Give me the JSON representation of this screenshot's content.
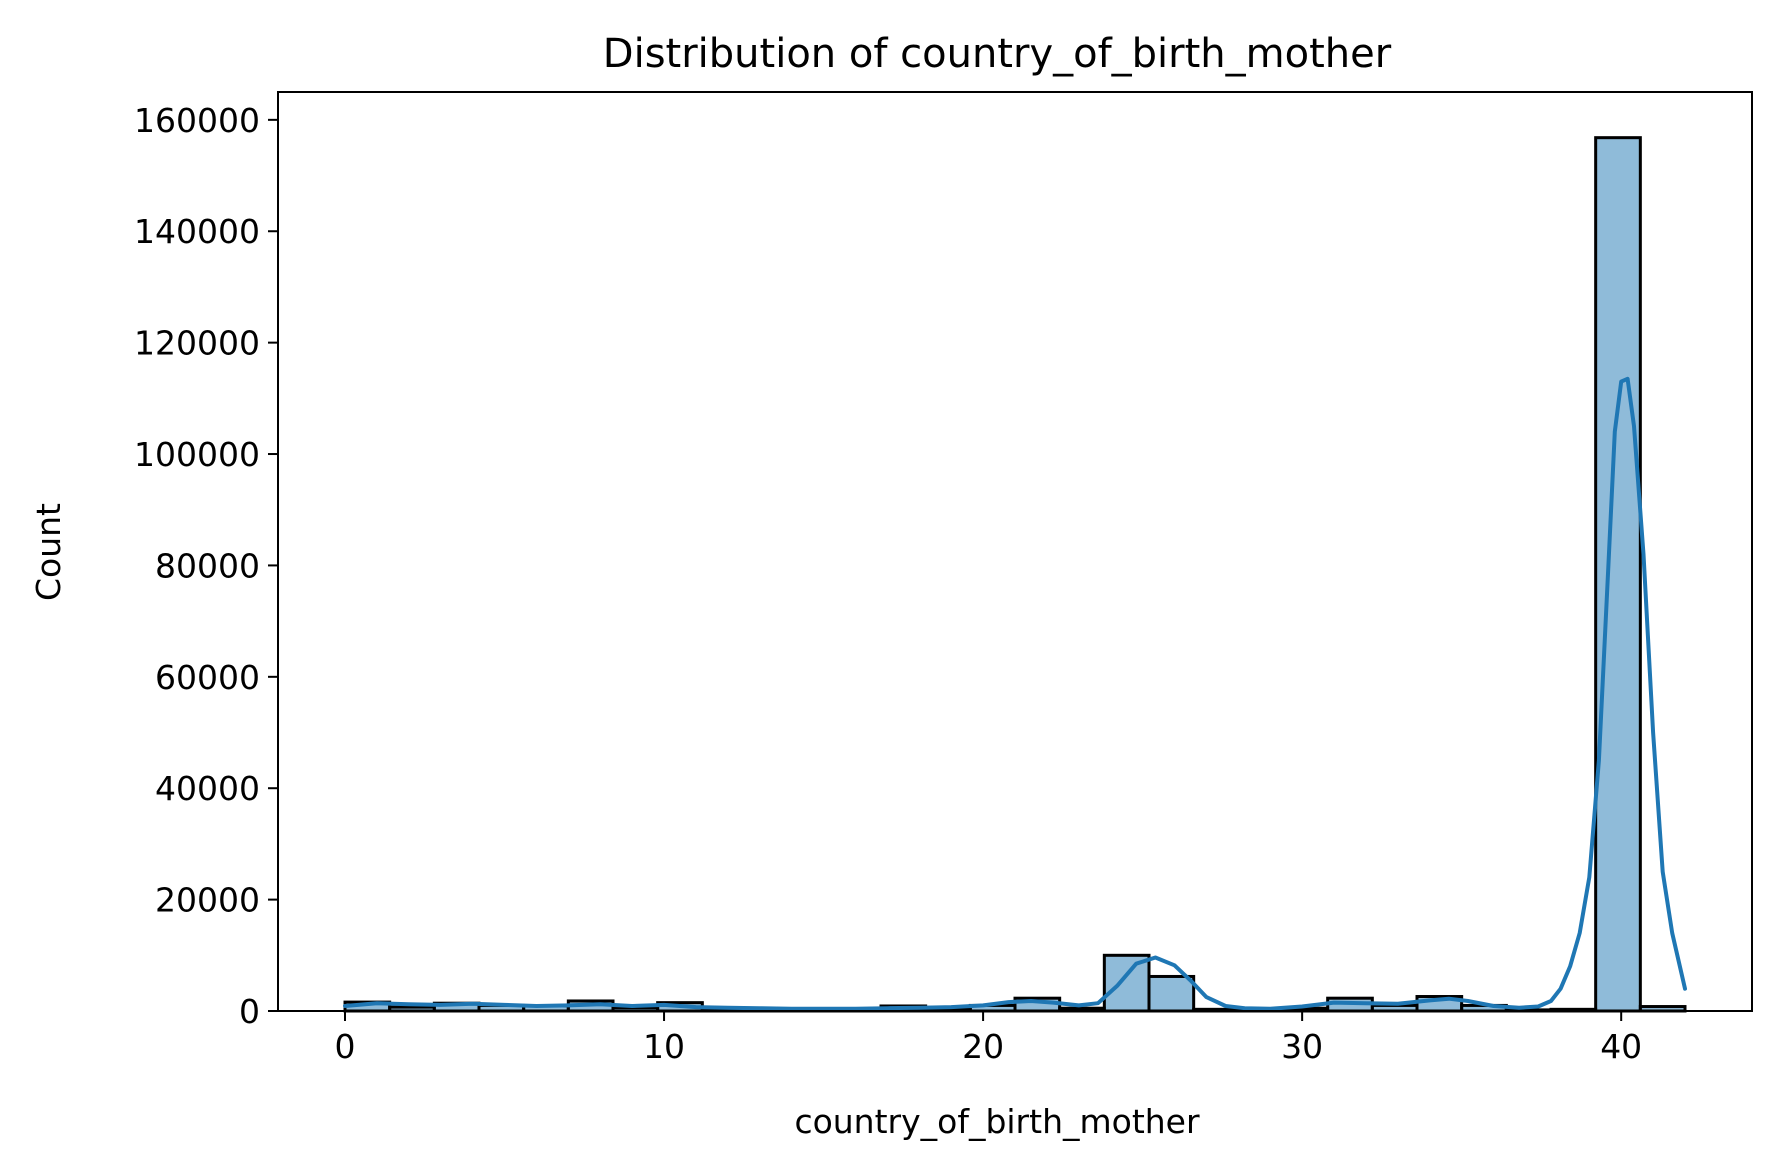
{
  "chart_data": {
    "type": "bar",
    "subtype": "histogram-with-kde",
    "title": "Distribution of country_of_birth_mother",
    "xlabel": "country_of_birth_mother",
    "ylabel": "Count",
    "xlim": [
      -2.1,
      44.1
    ],
    "ylim": [
      0,
      165000
    ],
    "xticks": [
      0,
      10,
      20,
      30,
      40
    ],
    "yticks": [
      0,
      20000,
      40000,
      60000,
      80000,
      100000,
      120000,
      140000,
      160000
    ],
    "grid": false,
    "bin_edges": [
      0,
      1.4,
      2.8,
      4.2,
      5.6,
      7,
      8.4,
      9.8,
      11.2,
      12.6,
      14,
      15.4,
      16.8,
      18.2,
      19.6,
      21,
      22.4,
      23.8,
      25.2,
      26.6,
      28,
      29.4,
      30.8,
      32.2,
      33.6,
      35,
      36.4,
      37.8,
      39.2,
      40.6,
      42
    ],
    "counts": [
      1600,
      700,
      1400,
      1000,
      900,
      1800,
      600,
      1500,
      400,
      300,
      200,
      300,
      900,
      300,
      1000,
      2300,
      500,
      10000,
      6200,
      300,
      200,
      500,
      2300,
      1000,
      2600,
      1000,
      200,
      300,
      156800,
      800
    ],
    "kde": {
      "x": [
        0,
        1,
        2,
        3,
        4,
        5,
        6,
        7,
        8,
        9,
        10,
        11,
        12,
        13,
        14,
        15,
        16,
        17,
        18,
        19,
        20,
        20.8,
        21.5,
        22.2,
        23,
        23.6,
        24.2,
        24.8,
        25.4,
        26,
        26.5,
        27,
        27.6,
        28.2,
        29,
        30,
        31,
        32,
        33,
        34,
        34.6,
        35.2,
        36,
        36.8,
        37.4,
        37.8,
        38.1,
        38.4,
        38.7,
        39,
        39.3,
        39.6,
        39.8,
        40,
        40.2,
        40.4,
        40.7,
        41,
        41.3,
        41.6,
        42
      ],
      "y": [
        900,
        1400,
        1200,
        1100,
        1300,
        1100,
        900,
        1000,
        1200,
        900,
        1100,
        700,
        600,
        500,
        400,
        400,
        400,
        500,
        600,
        700,
        1000,
        1600,
        1800,
        1500,
        1000,
        1400,
        4500,
        8500,
        9600,
        8200,
        5500,
        2500,
        900,
        500,
        400,
        800,
        1500,
        1400,
        1300,
        1900,
        2200,
        1800,
        900,
        600,
        800,
        1800,
        4000,
        8000,
        14000,
        24000,
        45000,
        80000,
        104000,
        113000,
        113500,
        105000,
        82000,
        50000,
        25000,
        14000,
        4000
      ]
    }
  }
}
